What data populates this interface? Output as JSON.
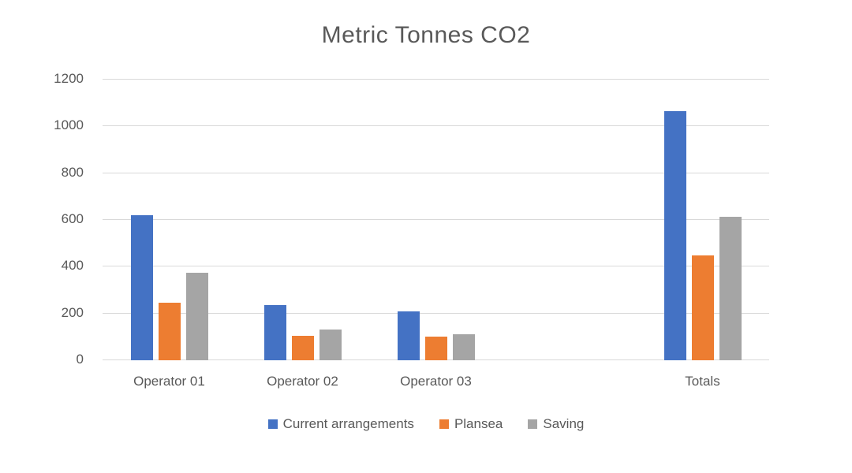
{
  "title": "Metric Tonnes CO2",
  "chart_data": {
    "type": "bar",
    "title": "Metric Tonnes CO2",
    "categories": [
      "Operator 01",
      "Operator 02",
      "Operator 03",
      "Totals"
    ],
    "series": [
      {
        "name": "Current arrangements",
        "color": "#4472C4",
        "values": [
          620,
          235,
          210,
          1065
        ]
      },
      {
        "name": "Plansea",
        "color": "#ED7D31",
        "values": [
          245,
          105,
          100,
          450
        ]
      },
      {
        "name": "Saving",
        "color": "#A5A5A5",
        "values": [
          375,
          130,
          110,
          615
        ]
      }
    ],
    "xlabel": "",
    "ylabel": "",
    "ylim": [
      0,
      1200
    ],
    "yticks": [
      0,
      200,
      400,
      600,
      800,
      1000,
      1200
    ],
    "grid": true,
    "legend_position": "bottom",
    "layout": {
      "slot_count": 5,
      "slot_index": [
        0,
        1,
        2,
        4
      ],
      "note_blank_slot": "one empty category slot between Operator 03 and Totals"
    },
    "colors": {
      "text": "#595959",
      "gridline": "#d9d9d9",
      "background": "#ffffff"
    }
  }
}
